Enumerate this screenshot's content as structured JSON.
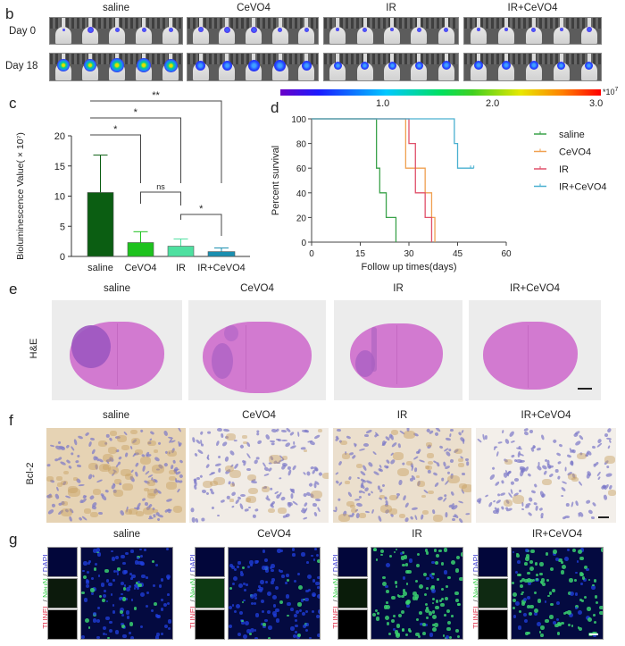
{
  "panels": {
    "b": {
      "letter": "b",
      "groups": [
        "saline",
        "CeVO4",
        "IR",
        "IR+CeVO4"
      ],
      "rows": [
        "Day 0",
        "Day 18"
      ]
    },
    "colorbar": {
      "ticks": [
        "1.0",
        "2.0",
        "3.0"
      ],
      "unit": "*10",
      "unit_exp": "7"
    },
    "c": {
      "letter": "c"
    },
    "d": {
      "letter": "d"
    },
    "e": {
      "letter": "e",
      "groups": [
        "saline",
        "CeVO4",
        "IR",
        "IR+CeVO4"
      ],
      "row_label": "H&E"
    },
    "f": {
      "letter": "f",
      "groups": [
        "saline",
        "CeVO4",
        "IR",
        "IR+CeVO4"
      ],
      "row_label": "Bcl-2"
    },
    "g": {
      "letter": "g",
      "groups": [
        "saline",
        "CeVO4",
        "IR",
        "IR+CeVO4"
      ],
      "stain_label_parts": [
        "TUNEL",
        " / ",
        "NeuN",
        " / ",
        "DAPI"
      ],
      "stain_colors": [
        "#e0304a",
        "#444444",
        "#2ecc40",
        "#444444",
        "#3a3ad0"
      ]
    }
  },
  "chart_data": [
    {
      "id": "c",
      "type": "bar",
      "title": "",
      "categories": [
        "saline",
        "CeVO4",
        "IR",
        "IR+CeVO4"
      ],
      "values": [
        10.6,
        2.3,
        1.7,
        0.8
      ],
      "errors": [
        6.2,
        1.8,
        1.2,
        0.6
      ],
      "colors": [
        "#0b5e12",
        "#1ec21e",
        "#4ee0a0",
        "#1a8fb0"
      ],
      "xlabel": "",
      "ylabel": "Bioluminescence Value( × 10⁷)",
      "ylim": [
        0,
        20
      ],
      "yticks": [
        0,
        5,
        10,
        15,
        20
      ],
      "significance": [
        {
          "from": "saline",
          "to": "CeVO4",
          "label": "*"
        },
        {
          "from": "saline",
          "to": "IR",
          "label": "*"
        },
        {
          "from": "saline",
          "to": "IR+CeVO4",
          "label": "**"
        },
        {
          "from": "CeVO4",
          "to": "IR",
          "label": "ns"
        },
        {
          "from": "IR",
          "to": "IR+CeVO4",
          "label": "*"
        }
      ]
    },
    {
      "id": "d",
      "type": "line",
      "title": "",
      "xlabel": "Follow up times(days)",
      "ylabel": "Percent survival",
      "xlim": [
        0,
        60
      ],
      "ylim": [
        0,
        100
      ],
      "xticks": [
        0,
        15,
        30,
        45,
        60
      ],
      "yticks": [
        0,
        20,
        40,
        60,
        80,
        100
      ],
      "legend_position": "right",
      "series": [
        {
          "name": "saline",
          "color": "#3aa24a",
          "steps": [
            [
              0,
              100
            ],
            [
              20,
              60
            ],
            [
              21,
              40
            ],
            [
              23,
              20
            ],
            [
              26,
              0
            ]
          ],
          "end": 26
        },
        {
          "name": "CeVO4",
          "color": "#f0a050",
          "steps": [
            [
              0,
              100
            ],
            [
              29,
              60
            ],
            [
              35,
              40
            ],
            [
              37,
              20
            ],
            [
              38,
              0
            ]
          ],
          "end": 38
        },
        {
          "name": "IR",
          "color": "#e0506a",
          "steps": [
            [
              0,
              100
            ],
            [
              30,
              80
            ],
            [
              32,
              40
            ],
            [
              35,
              20
            ],
            [
              37,
              0
            ]
          ],
          "end": 37
        },
        {
          "name": "IR+CeVO4",
          "color": "#4ab0d0",
          "steps": [
            [
              0,
              100
            ],
            [
              44,
              80
            ],
            [
              45,
              60
            ]
          ],
          "end": 50,
          "censored": [
            49,
            50
          ]
        }
      ]
    }
  ]
}
